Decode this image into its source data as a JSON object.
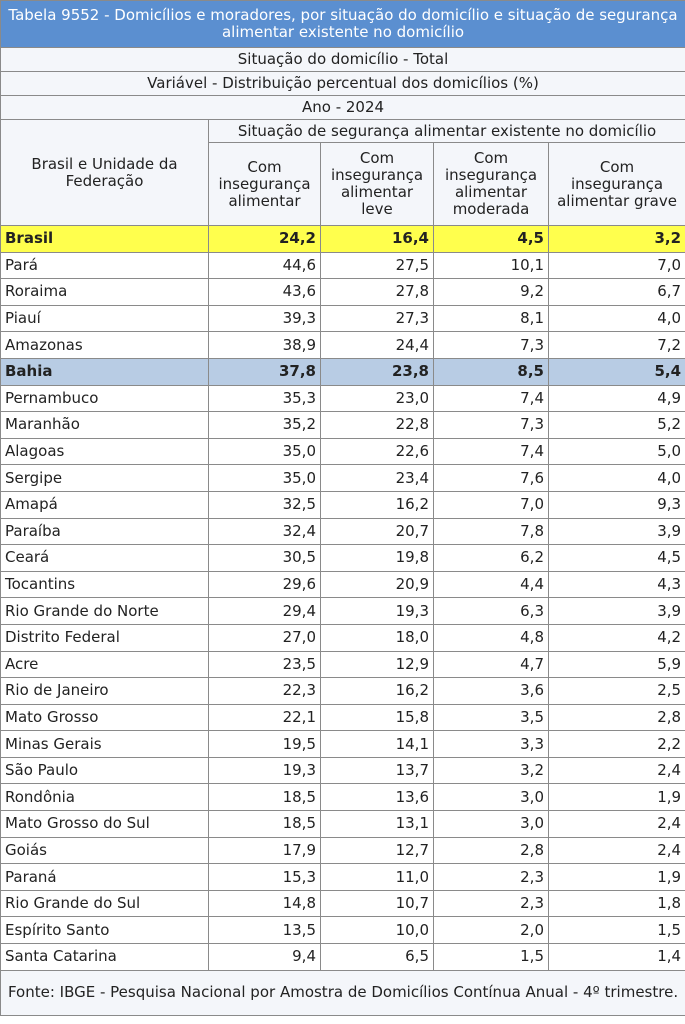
{
  "title": "Tabela 9552 - Domicílios e moradores, por situação do domicílio e situação de segurança alimentar existente no domicílio",
  "info": [
    "Situação do domicílio - Total",
    "Variável - Distribuição percentual dos domicílios (%)",
    "Ano - 2024"
  ],
  "table": {
    "row_header": "Brasil e Unidade da Federação",
    "group_header": "Situação de segurança alimentar existente no domicílio",
    "columns": [
      "Com insegurança alimentar",
      "Com insegurança alimentar leve",
      "Com insegurança alimentar moderada",
      "Com insegurança alimentar grave"
    ],
    "rows": [
      [
        "Brasil",
        "24,2",
        "16,4",
        "4,5",
        "3,2"
      ],
      [
        "Pará",
        "44,6",
        "27,5",
        "10,1",
        "7,0"
      ],
      [
        "Roraima",
        "43,6",
        "27,8",
        "9,2",
        "6,7"
      ],
      [
        "Piauí",
        "39,3",
        "27,3",
        "8,1",
        "4,0"
      ],
      [
        "Amazonas",
        "38,9",
        "24,4",
        "7,3",
        "7,2"
      ],
      [
        "Bahia",
        "37,8",
        "23,8",
        "8,5",
        "5,4"
      ],
      [
        "Pernambuco",
        "35,3",
        "23,0",
        "7,4",
        "4,9"
      ],
      [
        "Maranhão",
        "35,2",
        "22,8",
        "7,3",
        "5,2"
      ],
      [
        "Alagoas",
        "35,0",
        "22,6",
        "7,4",
        "5,0"
      ],
      [
        "Sergipe",
        "35,0",
        "23,4",
        "7,6",
        "4,0"
      ],
      [
        "Amapá",
        "32,5",
        "16,2",
        "7,0",
        "9,3"
      ],
      [
        "Paraíba",
        "32,4",
        "20,7",
        "7,8",
        "3,9"
      ],
      [
        "Ceará",
        "30,5",
        "19,8",
        "6,2",
        "4,5"
      ],
      [
        "Tocantins",
        "29,6",
        "20,9",
        "4,4",
        "4,3"
      ],
      [
        "Rio Grande do Norte",
        "29,4",
        "19,3",
        "6,3",
        "3,9"
      ],
      [
        "Distrito Federal",
        "27,0",
        "18,0",
        "4,8",
        "4,2"
      ],
      [
        "Acre",
        "23,5",
        "12,9",
        "4,7",
        "5,9"
      ],
      [
        "Rio de Janeiro",
        "22,3",
        "16,2",
        "3,6",
        "2,5"
      ],
      [
        "Mato Grosso",
        "22,1",
        "15,8",
        "3,5",
        "2,8"
      ],
      [
        "Minas Gerais",
        "19,5",
        "14,1",
        "3,3",
        "2,2"
      ],
      [
        "São Paulo",
        "19,3",
        "13,7",
        "3,2",
        "2,4"
      ],
      [
        "Rondônia",
        "18,5",
        "13,6",
        "3,0",
        "1,9"
      ],
      [
        "Mato Grosso do Sul",
        "18,5",
        "13,1",
        "3,0",
        "2,4"
      ],
      [
        "Goiás",
        "17,9",
        "12,7",
        "2,8",
        "2,4"
      ],
      [
        "Paraná",
        "15,3",
        "11,0",
        "2,3",
        "1,9"
      ],
      [
        "Rio Grande do Sul",
        "14,8",
        "10,7",
        "2,3",
        "1,8"
      ],
      [
        "Espírito Santo",
        "13,5",
        "10,0",
        "2,0",
        "1,5"
      ],
      [
        "Santa Catarina",
        "9,4",
        "6,5",
        "1,5",
        "1,4"
      ]
    ]
  },
  "footer": "Fonte: IBGE - Pesquisa Nacional por Amostra de Domicílios Contínua Anual - 4º trimestre."
}
